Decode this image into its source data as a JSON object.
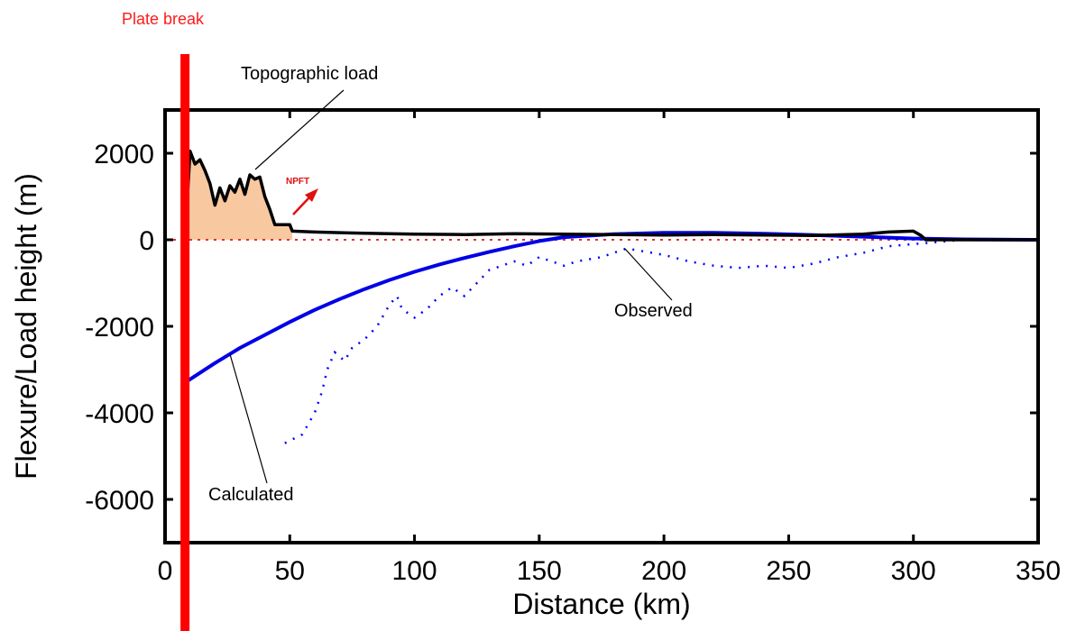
{
  "chart_data": {
    "type": "line",
    "xlabel": "Distance (km)",
    "ylabel": "Flexure/Load height (m)",
    "xlim": [
      0,
      350
    ],
    "ylim": [
      -7000,
      3000
    ],
    "xticks": [
      0,
      50,
      100,
      150,
      200,
      250,
      300,
      350
    ],
    "yticks": [
      2000,
      0,
      -2000,
      -4000,
      -6000
    ],
    "grid": false,
    "plate_break_x": 8,
    "colors": {
      "load": "#000000",
      "load_fill": "#f8c9a0",
      "calculated": "#0000e6",
      "observed": "#0000ff",
      "plate_break": "#ff0000",
      "npft": "#e01010"
    },
    "series": [
      {
        "name": "Topographic load",
        "x": [
          8,
          10,
          12,
          14,
          16,
          18,
          20,
          22,
          24,
          26,
          28,
          30,
          32,
          34,
          36,
          38,
          40,
          42,
          44,
          46,
          48,
          50,
          51,
          60,
          80,
          100,
          120,
          140,
          160,
          180,
          200,
          220,
          240,
          260,
          280,
          290,
          300,
          303,
          305,
          320,
          350
        ],
        "values": [
          0,
          2050,
          1750,
          1850,
          1600,
          1300,
          800,
          1200,
          900,
          1250,
          1100,
          1400,
          1050,
          1500,
          1400,
          1450,
          1000,
          700,
          350,
          350,
          350,
          350,
          200,
          180,
          150,
          130,
          120,
          140,
          130,
          120,
          110,
          120,
          110,
          100,
          130,
          180,
          200,
          100,
          0,
          0,
          0
        ]
      },
      {
        "name": "Calculated",
        "x": [
          8,
          20,
          30,
          40,
          50,
          60,
          70,
          80,
          90,
          100,
          110,
          120,
          130,
          140,
          150,
          160,
          180,
          200,
          220,
          240,
          260,
          280,
          300,
          320,
          350
        ],
        "values": [
          -3300,
          -2850,
          -2500,
          -2200,
          -1900,
          -1620,
          -1370,
          -1140,
          -930,
          -740,
          -570,
          -420,
          -280,
          -150,
          -30,
          60,
          130,
          160,
          160,
          140,
          110,
          70,
          30,
          10,
          0
        ]
      },
      {
        "name": "Observed",
        "x": [
          48,
          55,
          60,
          63,
          65,
          68,
          72,
          75,
          80,
          85,
          90,
          93,
          95,
          100,
          105,
          110,
          115,
          120,
          125,
          130,
          135,
          140,
          145,
          150,
          155,
          160,
          165,
          170,
          175,
          180,
          185,
          190,
          195,
          200,
          210,
          220,
          230,
          240,
          250,
          260,
          270,
          280,
          290,
          300,
          310,
          320
        ],
        "values": [
          -4700,
          -4500,
          -4000,
          -3500,
          -3000,
          -2600,
          -2800,
          -2500,
          -2300,
          -2000,
          -1500,
          -1300,
          -1600,
          -1800,
          -1600,
          -1300,
          -1100,
          -1300,
          -1000,
          -700,
          -600,
          -500,
          -600,
          -400,
          -500,
          -600,
          -500,
          -450,
          -400,
          -300,
          -200,
          -250,
          -300,
          -350,
          -500,
          -600,
          -650,
          -600,
          -650,
          -550,
          -400,
          -300,
          -150,
          -100,
          -50,
          0
        ]
      }
    ],
    "annotations": {
      "topographic_load": "Topographic load",
      "observed": "Observed",
      "calculated": "Calculated",
      "plate_break": "Plate break",
      "npft": "NPFT"
    }
  }
}
